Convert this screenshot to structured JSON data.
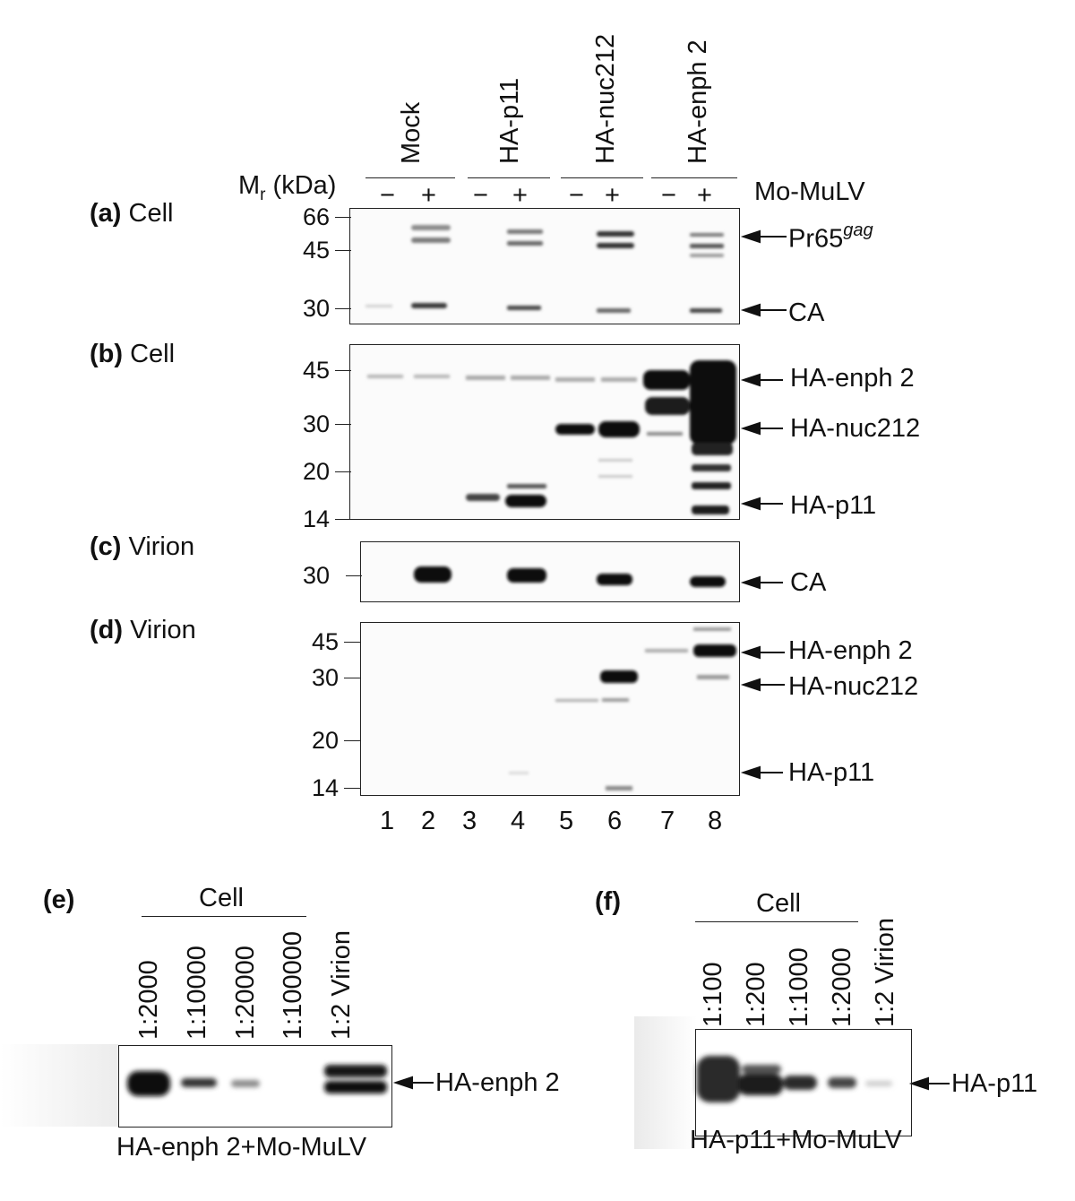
{
  "top": {
    "lane_headers": [
      "Mock",
      "HA-p11",
      "HA-nuc212",
      "HA-enph 2"
    ],
    "mr_label_main": "M",
    "mr_label_sub": "r",
    "mr_label_unit": " (kDa)",
    "virus_label": "Mo-MuLV",
    "signs": [
      "−",
      "+",
      "−",
      "+",
      "−",
      "+",
      "−",
      "+"
    ],
    "lane_numbers": [
      "1",
      "2",
      "3",
      "4",
      "5",
      "6",
      "7",
      "8"
    ]
  },
  "panels": {
    "a": {
      "letter": "(a)",
      "sample": "Cell",
      "markers": [
        "66",
        "45",
        "30"
      ],
      "bands": [
        {
          "text": "Pr65",
          "sup": "gag"
        },
        {
          "text": "CA"
        }
      ]
    },
    "b": {
      "letter": "(b)",
      "sample": "Cell",
      "markers": [
        "45",
        "30",
        "20",
        "14"
      ],
      "bands": [
        "HA-enph 2",
        "HA-nuc212",
        "HA-p11"
      ]
    },
    "c": {
      "letter": "(c)",
      "sample": "Virion",
      "markers": [
        "30"
      ],
      "bands": [
        "CA"
      ]
    },
    "d": {
      "letter": "(d)",
      "sample": "Virion",
      "markers": [
        "45",
        "30",
        "20",
        "14"
      ],
      "bands": [
        "HA-enph 2",
        "HA-nuc212",
        "HA-p11"
      ]
    },
    "e": {
      "letter": "(e)",
      "group_label": "Cell",
      "lanes": [
        "1:2000",
        "1:10000",
        "1:20000",
        "1:100000",
        "1:2 Virion"
      ],
      "band": "HA-enph 2",
      "caption": "HA-enph 2+Mo-MuLV"
    },
    "f": {
      "letter": "(f)",
      "group_label": "Cell",
      "lanes": [
        "1:100",
        "1:200",
        "1:1000",
        "1:2000",
        "1:2 Virion"
      ],
      "band": "HA-p11",
      "caption": "HA-p11+Mo-MuLV"
    }
  }
}
